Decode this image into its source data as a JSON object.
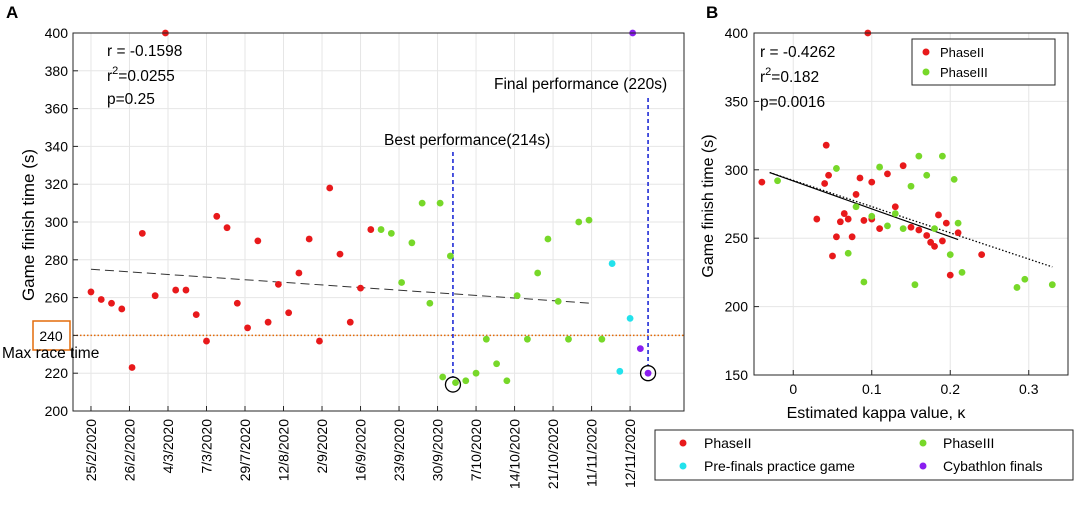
{
  "colors": {
    "phase2": "#e8191b",
    "phase3": "#77d829",
    "prefinals": "#22e2ec",
    "finals": "#8a1ef0",
    "maxline": "#e46c0a",
    "vline": "#1f2bd6"
  },
  "panel_a": {
    "label": "A",
    "ylabel": "Game finish time (s)",
    "stats": {
      "r": "r = -0.1598",
      "r2_prefix": "r",
      "r2_sup": "2",
      "r2_value": "=0.0255",
      "p": "p=0.25"
    },
    "best_label": "Best performance(214s)",
    "final_label": "Final performance (220s)",
    "max_race_label": "Max race time",
    "max_race_box": "240"
  },
  "panel_b": {
    "label": "B",
    "ylabel": "Game finish time (s)",
    "xlabel": "Estimated kappa value, κ",
    "stats": {
      "r": "r = -0.4262",
      "r2_prefix": "r",
      "r2_sup": "2",
      "r2_value": "=0.182",
      "p": "p=0.0016"
    }
  },
  "legend_bottom": [
    "PhaseII",
    "PhaseIII",
    "Pre-finals practice game",
    "Cybathlon finals"
  ],
  "chart_data": [
    {
      "type": "scatter",
      "title": "",
      "ylabel": "Game finish time (s)",
      "xlabel": "",
      "ylim": [
        200,
        400
      ],
      "xlim": [
        -0.7,
        23.1
      ],
      "yticks": [
        200,
        220,
        240,
        260,
        280,
        300,
        320,
        340,
        360,
        380,
        400
      ],
      "xticklabels": [
        "25/2/2020",
        "26/2/2020",
        "4/3/2020",
        "7/3/2020",
        "29/7/2020",
        "12/8/2020",
        "2/9/2020",
        "16/9/2020",
        "23/9/2020",
        "30/9/2020",
        "7/10/2020",
        "14/10/2020",
        "21/10/2020",
        "11/11/2020",
        "12/11/2020"
      ],
      "xtick_positions": [
        0,
        1.5,
        3,
        4.5,
        6,
        7.5,
        9,
        10.5,
        12,
        13.5,
        15,
        16.5,
        18,
        19.5,
        21
      ],
      "max_race_time": 240,
      "trend": {
        "x": [
          0,
          19.5
        ],
        "y": [
          275,
          257
        ]
      },
      "best_marker": {
        "x": 14.1,
        "y": 214
      },
      "final_marker": {
        "x": 21.7,
        "y": 220
      },
      "series": [
        {
          "name": "PhaseII",
          "color": "#e8191b",
          "points": [
            [
              0,
              263
            ],
            [
              0.4,
              259
            ],
            [
              0.8,
              257
            ],
            [
              1.2,
              254
            ],
            [
              1.6,
              223
            ],
            [
              2,
              294
            ],
            [
              2.5,
              261
            ],
            [
              2.9,
              400
            ],
            [
              3.3,
              264
            ],
            [
              3.7,
              264
            ],
            [
              4.1,
              251
            ],
            [
              4.5,
              237
            ],
            [
              4.9,
              303
            ],
            [
              5.3,
              297
            ],
            [
              5.7,
              257
            ],
            [
              6.1,
              244
            ],
            [
              6.5,
              290
            ],
            [
              6.9,
              247
            ],
            [
              7.3,
              267
            ],
            [
              7.7,
              252
            ],
            [
              8.1,
              273
            ],
            [
              8.5,
              291
            ],
            [
              8.9,
              237
            ],
            [
              9.3,
              318
            ],
            [
              9.7,
              283
            ],
            [
              10.1,
              247
            ],
            [
              10.5,
              265
            ],
            [
              10.9,
              296
            ]
          ]
        },
        {
          "name": "PhaseIII",
          "color": "#77d829",
          "points": [
            [
              11.3,
              296
            ],
            [
              11.7,
              294
            ],
            [
              12.1,
              268
            ],
            [
              12.5,
              289
            ],
            [
              12.9,
              310
            ],
            [
              13.2,
              257
            ],
            [
              13.6,
              310
            ],
            [
              14,
              282
            ],
            [
              13.7,
              218
            ],
            [
              14.2,
              215
            ],
            [
              14.6,
              216
            ],
            [
              15,
              220
            ],
            [
              15.4,
              238
            ],
            [
              15.8,
              225
            ],
            [
              16.2,
              216
            ],
            [
              16.6,
              261
            ],
            [
              17,
              238
            ],
            [
              17.4,
              273
            ],
            [
              17.8,
              291
            ],
            [
              18.2,
              258
            ],
            [
              18.6,
              238
            ],
            [
              19,
              300
            ],
            [
              19.4,
              301
            ],
            [
              19.9,
              238
            ]
          ]
        },
        {
          "name": "Pre-finals practice game",
          "color": "#22e2ec",
          "points": [
            [
              20.3,
              278
            ],
            [
              20.6,
              221
            ],
            [
              21,
              249
            ]
          ]
        },
        {
          "name": "Cybathlon finals",
          "color": "#8a1ef0",
          "points": [
            [
              21.1,
              400
            ],
            [
              21.4,
              233
            ],
            [
              21.7,
              220
            ]
          ]
        }
      ]
    },
    {
      "type": "scatter",
      "title": "",
      "ylabel": "Game finish time (s)",
      "xlabel": "Estimated kappa value, κ",
      "xlim": [
        -0.05,
        0.35
      ],
      "ylim": [
        150,
        400
      ],
      "xticks": [
        0,
        0.1,
        0.2,
        0.3
      ],
      "yticks": [
        150,
        200,
        250,
        300,
        350,
        400
      ],
      "legend": [
        "PhaseII",
        "PhaseIII"
      ],
      "fit_line": {
        "x": [
          -0.03,
          0.21
        ],
        "y": [
          298,
          249
        ]
      },
      "fit_line_dotted": {
        "x": [
          -0.03,
          0.33
        ],
        "y": [
          298,
          229
        ]
      },
      "series": [
        {
          "name": "PhaseII",
          "color": "#e8191b",
          "points": [
            [
              -0.04,
              291
            ],
            [
              0.03,
              264
            ],
            [
              0.04,
              290
            ],
            [
              0.045,
              296
            ],
            [
              0.042,
              318
            ],
            [
              0.05,
              237
            ],
            [
              0.055,
              251
            ],
            [
              0.06,
              262
            ],
            [
              0.065,
              268
            ],
            [
              0.07,
              264
            ],
            [
              0.075,
              251
            ],
            [
              0.08,
              282
            ],
            [
              0.085,
              294
            ],
            [
              0.09,
              263
            ],
            [
              0.1,
              291
            ],
            [
              0.095,
              400
            ],
            [
              0.1,
              264
            ],
            [
              0.11,
              257
            ],
            [
              0.12,
              297
            ],
            [
              0.13,
              273
            ],
            [
              0.14,
              303
            ],
            [
              0.15,
              258
            ],
            [
              0.16,
              256
            ],
            [
              0.17,
              252
            ],
            [
              0.175,
              247
            ],
            [
              0.18,
              244
            ],
            [
              0.185,
              267
            ],
            [
              0.19,
              248
            ],
            [
              0.195,
              261
            ],
            [
              0.2,
              223
            ],
            [
              0.21,
              254
            ],
            [
              0.24,
              238
            ]
          ]
        },
        {
          "name": "PhaseIII",
          "color": "#77d829",
          "points": [
            [
              -0.02,
              292
            ],
            [
              0.055,
              301
            ],
            [
              0.07,
              239
            ],
            [
              0.08,
              273
            ],
            [
              0.09,
              218
            ],
            [
              0.1,
              266
            ],
            [
              0.11,
              302
            ],
            [
              0.12,
              259
            ],
            [
              0.13,
              268
            ],
            [
              0.14,
              257
            ],
            [
              0.15,
              288
            ],
            [
              0.16,
              310
            ],
            [
              0.155,
              216
            ],
            [
              0.17,
              296
            ],
            [
              0.18,
              257
            ],
            [
              0.19,
              310
            ],
            [
              0.2,
              238
            ],
            [
              0.205,
              293
            ],
            [
              0.21,
              261
            ],
            [
              0.215,
              225
            ],
            [
              0.285,
              214
            ],
            [
              0.295,
              220
            ],
            [
              0.33,
              216
            ]
          ]
        }
      ]
    }
  ]
}
